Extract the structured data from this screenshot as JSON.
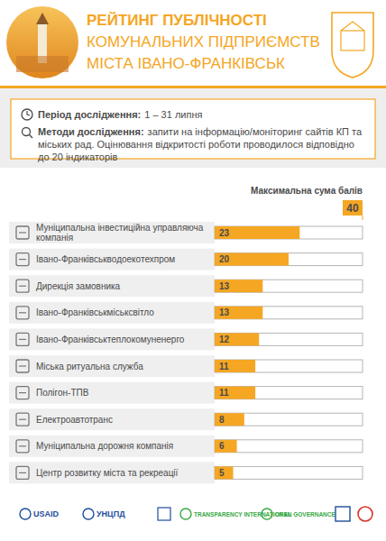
{
  "header": {
    "title_lines": [
      "РЕЙТИНГ ПУБЛІЧНОСТІ",
      "КОМУНАЛЬНИХ ПІДПРИЄМСТВ",
      "МІСТА ІВАНО-ФРАНКІВСЬК"
    ]
  },
  "info": {
    "period_label": "Період дослідження:",
    "period_value": "1 – 31 липня",
    "methods_label": "Методи дослідження:",
    "methods_value": "запити на інформацію/моніторинг сайтів КП та міських рад. Оцінювання відкритості роботи проводилося відповідно до 20 індикаторів"
  },
  "chart_data": {
    "type": "bar",
    "orientation": "horizontal",
    "xlabel": "Максимальна сума балів",
    "categories": [
      "Муніципальна інвестиційна управляюча компанія",
      "Івано-Франківськводоекотехпром",
      "Дирекція замовника",
      "Івано-Франківськміськсвітло",
      "Івано-Франківськтеплокомуненерго",
      "Міська ритуальна служба",
      "Полігон-ТПВ",
      "Електроавтотранс",
      "Муніципальна дорожня компанія",
      "Центр розвитку міста та рекреації"
    ],
    "values": [
      23,
      20,
      13,
      13,
      12,
      11,
      11,
      8,
      6,
      5
    ],
    "color": "#f5a623",
    "xlim": [
      0,
      40
    ],
    "xticks": [
      40
    ],
    "data_labels": true
  },
  "footer": {
    "logos": [
      "USAID",
      "УНЦПД",
      "TRANSPARENCY INTERNATIONAL",
      "OPEN GOVERNANCE"
    ]
  }
}
